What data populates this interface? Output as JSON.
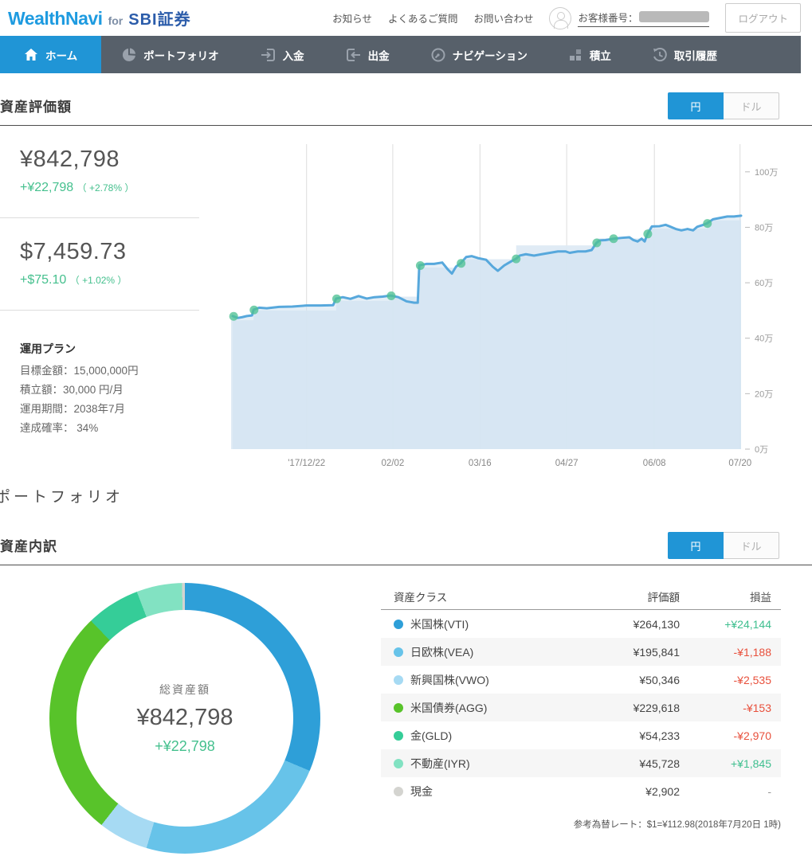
{
  "header": {
    "logo": {
      "brand": "WealthNavi",
      "for": "for",
      "partner": "SBI証券"
    },
    "links": [
      "お知らせ",
      "よくあるご質問",
      "お問い合わせ"
    ],
    "customer_label": "お客様番号：",
    "logout_label": "ログアウト"
  },
  "nav": {
    "items": [
      {
        "label": "ホーム",
        "icon": "home-icon",
        "active": true
      },
      {
        "label": "ポートフォリオ",
        "icon": "pie-chart-icon",
        "active": false
      },
      {
        "label": "入金",
        "icon": "deposit-icon",
        "active": false
      },
      {
        "label": "出金",
        "icon": "withdraw-icon",
        "active": false
      },
      {
        "label": "ナビゲーション",
        "icon": "navigation-icon",
        "active": false
      },
      {
        "label": "積立",
        "icon": "tsumitate-blocks-icon",
        "active": false
      },
      {
        "label": "取引履歴",
        "icon": "history-clock-icon",
        "active": false
      }
    ]
  },
  "colors": {
    "accent_blue": "#2095d6",
    "nav_bg": "#57606a",
    "positive_green": "#45c08e",
    "negative_red": "#e8503c",
    "chart_line": "#57a8dc",
    "chart_area": "#dde9f4",
    "deposit_dot": "#4fc194"
  },
  "currency_toggle": {
    "yen": "円",
    "dollar": "ドル",
    "active": "yen"
  },
  "valuation": {
    "title": "資産評価額",
    "jpy": {
      "amount": "¥842,798",
      "change": "+¥22,798",
      "change_pct": "（ +2.78% ）"
    },
    "usd": {
      "amount": "$7,459.73",
      "change": "+$75.10",
      "change_pct": "（ +1.02% ）"
    },
    "plan": {
      "title": "運用プラン",
      "rows": [
        "目標金額：15,000,000円",
        "積立額：30,000 円/月",
        "運用期間：2038年7月",
        "達成確率： 34%"
      ]
    }
  },
  "portfolio_title": "ポートフォリオ",
  "breakdown": {
    "title": "資産内訳",
    "donut_center": {
      "label": "総資産額",
      "amount": "¥842,798",
      "change": "+¥22,798"
    },
    "table_headers": [
      "資産クラス",
      "評価額",
      "損益"
    ],
    "assets": [
      {
        "label": "米国株(VTI)",
        "value": "¥264,130",
        "gain": "+¥24,144",
        "gain_type": "pos",
        "color": "#2e9fd8",
        "amount": 264130
      },
      {
        "label": "日欧株(VEA)",
        "value": "¥195,841",
        "gain": "-¥1,188",
        "gain_type": "neg",
        "color": "#67c3e9",
        "amount": 195841
      },
      {
        "label": "新興国株(VWO)",
        "value": "¥50,346",
        "gain": "-¥2,535",
        "gain_type": "neg",
        "color": "#a6daf3",
        "amount": 50346
      },
      {
        "label": "米国債券(AGG)",
        "value": "¥229,618",
        "gain": "-¥153",
        "gain_type": "neg",
        "color": "#58c32a",
        "amount": 229618
      },
      {
        "label": "金(GLD)",
        "value": "¥54,233",
        "gain": "-¥2,970",
        "gain_type": "neg",
        "color": "#35cd98",
        "amount": 54233
      },
      {
        "label": "不動産(IYR)",
        "value": "¥45,728",
        "gain": "+¥1,845",
        "gain_type": "pos",
        "color": "#82e2c2",
        "amount": 45728
      },
      {
        "label": "現金",
        "value": "¥2,902",
        "gain": "-",
        "gain_type": "flat",
        "color": "#d4d4d0",
        "amount": 2902
      }
    ],
    "note": "参考為替レート：$1=¥112.98(2018年7月20日 1時)"
  },
  "chart_data": {
    "type": "area",
    "unit": "万円",
    "grid": true,
    "ylim": [
      0,
      110
    ],
    "x_ticks": [
      "'17/12/22",
      "02/02",
      "03/16",
      "04/27",
      "06/08",
      "07/20"
    ],
    "x_tick_pos": [
      14.8,
      31.7,
      48.8,
      65.8,
      83.0,
      99.8
    ],
    "y_ticks": [
      {
        "v": 100,
        "label": "100万"
      },
      {
        "v": 80,
        "label": "80万"
      },
      {
        "v": 60,
        "label": "60万"
      },
      {
        "v": 40,
        "label": "40万"
      },
      {
        "v": 20,
        "label": "20万"
      },
      {
        "v": 0,
        "label": "0万"
      }
    ],
    "line": [
      [
        0.3,
        48
      ],
      [
        1.3,
        47.3
      ],
      [
        2.2,
        47.6
      ],
      [
        3.1,
        48
      ],
      [
        4.1,
        48.2
      ],
      [
        4.4,
        50.3
      ],
      [
        5.5,
        51
      ],
      [
        7,
        50.8
      ],
      [
        9.4,
        51.3
      ],
      [
        12,
        51.4
      ],
      [
        14.8,
        51.8
      ],
      [
        17.5,
        51.8
      ],
      [
        20,
        51.9
      ],
      [
        20.6,
        54.3
      ],
      [
        21.9,
        54.8
      ],
      [
        23.4,
        54.2
      ],
      [
        25,
        55.2
      ],
      [
        26.6,
        54.3
      ],
      [
        28.1,
        54.8
      ],
      [
        29.7,
        55
      ],
      [
        31.3,
        55.4
      ],
      [
        32.8,
        54.8
      ],
      [
        34.4,
        53.3
      ],
      [
        35.9,
        52.8
      ],
      [
        36.6,
        52.8
      ],
      [
        36.9,
        66.3
      ],
      [
        38.3,
        66.8
      ],
      [
        39.8,
        66.8
      ],
      [
        41.4,
        67.3
      ],
      [
        42.5,
        64.8
      ],
      [
        43.3,
        63.3
      ],
      [
        44.1,
        65.8
      ],
      [
        45,
        67
      ],
      [
        46.1,
        69.3
      ],
      [
        47.2,
        69.6
      ],
      [
        48.4,
        68.9
      ],
      [
        50,
        68.3
      ],
      [
        51.3,
        65.8
      ],
      [
        52.3,
        64.3
      ],
      [
        53.6,
        66.3
      ],
      [
        55,
        67.8
      ],
      [
        55.9,
        68.7
      ],
      [
        56.6,
        69.8
      ],
      [
        57.8,
        70.3
      ],
      [
        59.4,
        69.8
      ],
      [
        60.9,
        70.3
      ],
      [
        62.5,
        70.8
      ],
      [
        64.1,
        71.3
      ],
      [
        65.6,
        71.3
      ],
      [
        66.4,
        70.8
      ],
      [
        68,
        71.3
      ],
      [
        69.5,
        71.3
      ],
      [
        70.7,
        71.8
      ],
      [
        71.6,
        74.3
      ],
      [
        72.3,
        75.3
      ],
      [
        73.4,
        75.4
      ],
      [
        75,
        75.9
      ],
      [
        76.6,
        76.2
      ],
      [
        78.1,
        76.4
      ],
      [
        78.9,
        75.4
      ],
      [
        79.7,
        74.9
      ],
      [
        80.5,
        75.9
      ],
      [
        81.1,
        74.9
      ],
      [
        81.6,
        77.4
      ],
      [
        82.5,
        80.3
      ],
      [
        84,
        80.4
      ],
      [
        85.2,
        80.9
      ],
      [
        85.9,
        80.4
      ],
      [
        87.2,
        79.4
      ],
      [
        88.3,
        78.9
      ],
      [
        89.5,
        79.4
      ],
      [
        90.6,
        78.9
      ],
      [
        91.4,
        80.2
      ],
      [
        92.6,
        80.9
      ],
      [
        93.3,
        81.4
      ],
      [
        94.5,
        82.9
      ],
      [
        95.9,
        83.4
      ],
      [
        97.3,
        83.9
      ],
      [
        98.6,
        83.9
      ],
      [
        100,
        84.2
      ]
    ],
    "deposit_steps": [
      [
        0,
        46.5
      ],
      [
        4.4,
        50
      ],
      [
        20.6,
        53.5
      ],
      [
        31.3,
        55
      ],
      [
        36.9,
        65.5
      ],
      [
        45,
        68.5
      ],
      [
        55.9,
        73.5
      ],
      [
        71.6,
        76
      ],
      [
        81.6,
        79.5
      ],
      [
        93.3,
        82.5
      ]
    ],
    "deposit_dots": [
      [
        0.5,
        47.9
      ],
      [
        4.5,
        50.2
      ],
      [
        20.7,
        54.2
      ],
      [
        31.4,
        55.3
      ],
      [
        37.1,
        66.2
      ],
      [
        45.1,
        67
      ],
      [
        55.9,
        68.6
      ],
      [
        71.7,
        74.4
      ],
      [
        75,
        75.9
      ],
      [
        81.7,
        77.6
      ],
      [
        93.4,
        81.4
      ]
    ]
  }
}
